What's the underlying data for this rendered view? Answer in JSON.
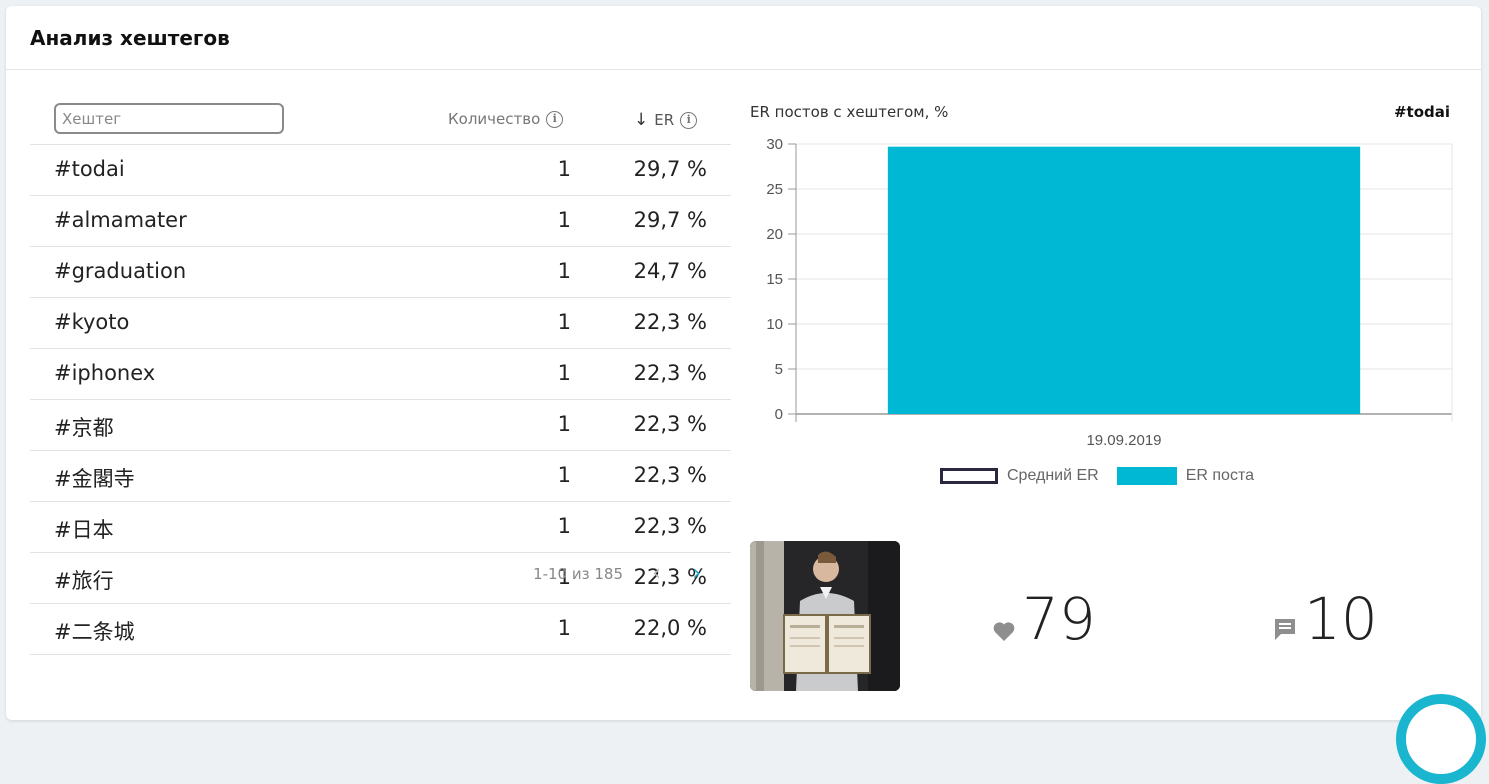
{
  "header": {
    "title": "Анализ хештегов"
  },
  "table": {
    "search_placeholder": "Хештег",
    "columns": {
      "count": "Количество",
      "er": "ER"
    },
    "rows": [
      {
        "tag": "#todai",
        "count": "1",
        "er": "29,7 %"
      },
      {
        "tag": "#almamater",
        "count": "1",
        "er": "29,7 %"
      },
      {
        "tag": "#graduation",
        "count": "1",
        "er": "24,7 %"
      },
      {
        "tag": "#kyoto",
        "count": "1",
        "er": "22,3 %"
      },
      {
        "tag": "#iphonex",
        "count": "1",
        "er": "22,3 %"
      },
      {
        "tag": "#京都",
        "count": "1",
        "er": "22,3 %"
      },
      {
        "tag": "#金閣寺",
        "count": "1",
        "er": "22,3 %"
      },
      {
        "tag": "#日本",
        "count": "1",
        "er": "22,3 %"
      },
      {
        "tag": "#旅行",
        "count": "1",
        "er": "22,3 %"
      },
      {
        "tag": "#二条城",
        "count": "1",
        "er": "22,0 %"
      }
    ],
    "pagination": {
      "info": "1-10 из 185"
    }
  },
  "chart_data": {
    "type": "bar",
    "title": "ER постов с хештегом, %",
    "selected_tag": "#todai",
    "categories": [
      "19.09.2019"
    ],
    "series": [
      {
        "name": "Средний ER",
        "values": [
          null
        ],
        "color": "#2d2640"
      },
      {
        "name": "ER поста",
        "values": [
          29.7
        ],
        "color": "#00b8d4"
      }
    ],
    "ylim": [
      0,
      30
    ],
    "yticks": [
      0,
      5,
      10,
      15,
      20,
      25,
      30
    ],
    "grid": true,
    "legend": "bottom"
  },
  "post": {
    "likes": "79",
    "comments": "10"
  },
  "colors": {
    "accent": "#00b8d4",
    "pager_active": "#1aa9c9"
  }
}
